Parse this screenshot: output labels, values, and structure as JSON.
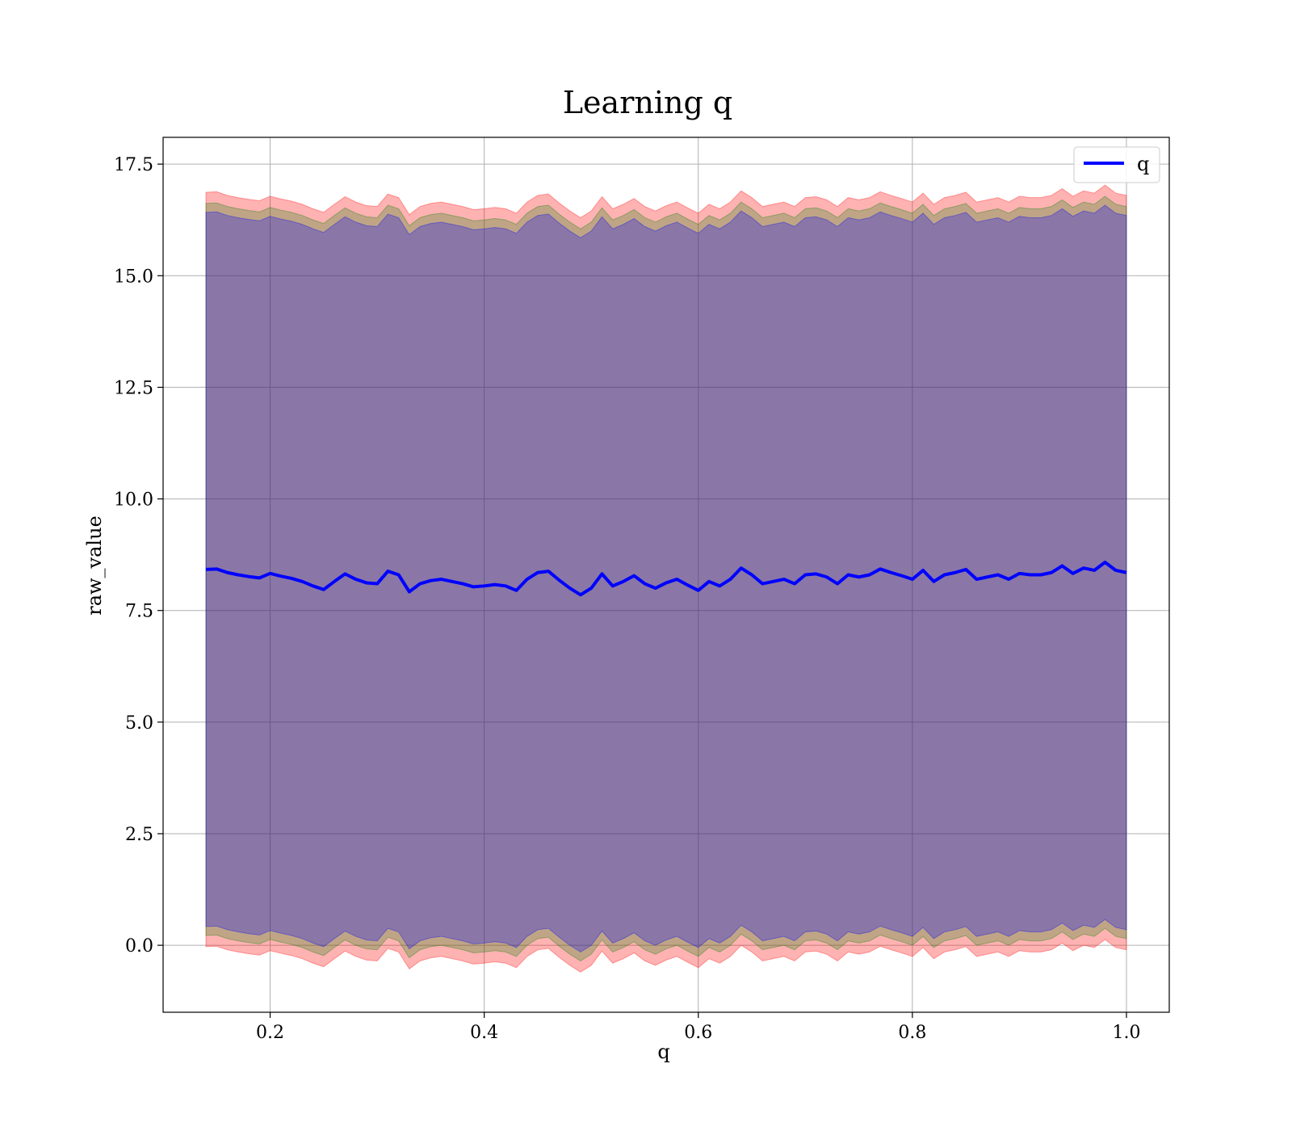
{
  "chart_data": {
    "type": "line",
    "title": "Learning q",
    "xlabel": "q",
    "ylabel": "raw_value",
    "xlim": [
      0.1,
      1.04
    ],
    "ylim": [
      -1.5,
      18.1
    ],
    "grid": true,
    "legend_position": "top-right",
    "x_ticks": [
      {
        "value": 0.2,
        "label": "0.2"
      },
      {
        "value": 0.4,
        "label": "0.4"
      },
      {
        "value": 0.6,
        "label": "0.6"
      },
      {
        "value": 0.8,
        "label": "0.8"
      },
      {
        "value": 1.0,
        "label": "1.0"
      }
    ],
    "y_ticks": [
      {
        "value": 0.0,
        "label": "0.0"
      },
      {
        "value": 2.5,
        "label": "2.5"
      },
      {
        "value": 5.0,
        "label": "5.0"
      },
      {
        "value": 7.5,
        "label": "7.5"
      },
      {
        "value": 10.0,
        "label": "10.0"
      },
      {
        "value": 12.5,
        "label": "12.5"
      },
      {
        "value": 15.0,
        "label": "15.0"
      },
      {
        "value": 17.5,
        "label": "17.5"
      }
    ],
    "series": [
      {
        "name": "q",
        "color": "#0000ff",
        "x": [
          0.14,
          0.15,
          0.16,
          0.17,
          0.18,
          0.19,
          0.2,
          0.21,
          0.22,
          0.23,
          0.24,
          0.25,
          0.26,
          0.27,
          0.28,
          0.29,
          0.3,
          0.31,
          0.32,
          0.33,
          0.34,
          0.35,
          0.36,
          0.37,
          0.38,
          0.39,
          0.4,
          0.41,
          0.42,
          0.43,
          0.44,
          0.45,
          0.46,
          0.47,
          0.48,
          0.49,
          0.5,
          0.51,
          0.52,
          0.53,
          0.54,
          0.55,
          0.56,
          0.57,
          0.58,
          0.59,
          0.6,
          0.61,
          0.62,
          0.63,
          0.64,
          0.65,
          0.66,
          0.67,
          0.68,
          0.69,
          0.7,
          0.71,
          0.72,
          0.73,
          0.74,
          0.75,
          0.76,
          0.77,
          0.78,
          0.79,
          0.8,
          0.81,
          0.82,
          0.83,
          0.84,
          0.85,
          0.86,
          0.87,
          0.88,
          0.89,
          0.9,
          0.91,
          0.92,
          0.93,
          0.94,
          0.95,
          0.96,
          0.97,
          0.98,
          0.99,
          1.0
        ],
        "y": [
          8.42,
          8.43,
          8.35,
          8.3,
          8.26,
          8.23,
          8.33,
          8.27,
          8.22,
          8.15,
          8.05,
          7.97,
          8.15,
          8.32,
          8.2,
          8.12,
          8.1,
          8.38,
          8.3,
          7.92,
          8.1,
          8.17,
          8.2,
          8.15,
          8.1,
          8.03,
          8.05,
          8.08,
          8.05,
          7.95,
          8.2,
          8.35,
          8.38,
          8.18,
          8.0,
          7.85,
          8.0,
          8.32,
          8.05,
          8.15,
          8.28,
          8.1,
          8.0,
          8.12,
          8.2,
          8.07,
          7.95,
          8.15,
          8.05,
          8.2,
          8.45,
          8.3,
          8.1,
          8.15,
          8.2,
          8.1,
          8.3,
          8.32,
          8.25,
          8.1,
          8.3,
          8.25,
          8.3,
          8.43,
          8.35,
          8.28,
          8.2,
          8.4,
          8.15,
          8.3,
          8.35,
          8.42,
          8.2,
          8.25,
          8.3,
          8.2,
          8.33,
          8.3,
          8.3,
          8.35,
          8.5,
          8.33,
          8.45,
          8.4,
          8.58,
          8.4,
          8.35
        ]
      }
    ],
    "bands": [
      {
        "name": "",
        "color": "#ff0000",
        "opacity": 0.3,
        "offset_lower": -8.45,
        "offset_upper": 8.45
      },
      {
        "name": "",
        "color": "#008000",
        "opacity": 0.25,
        "offset_lower": -8.2,
        "offset_upper": 8.2
      },
      {
        "name": "",
        "color": "#0000ff",
        "opacity": 0.28,
        "offset_lower": -8.0,
        "offset_upper": 8.0
      }
    ]
  }
}
